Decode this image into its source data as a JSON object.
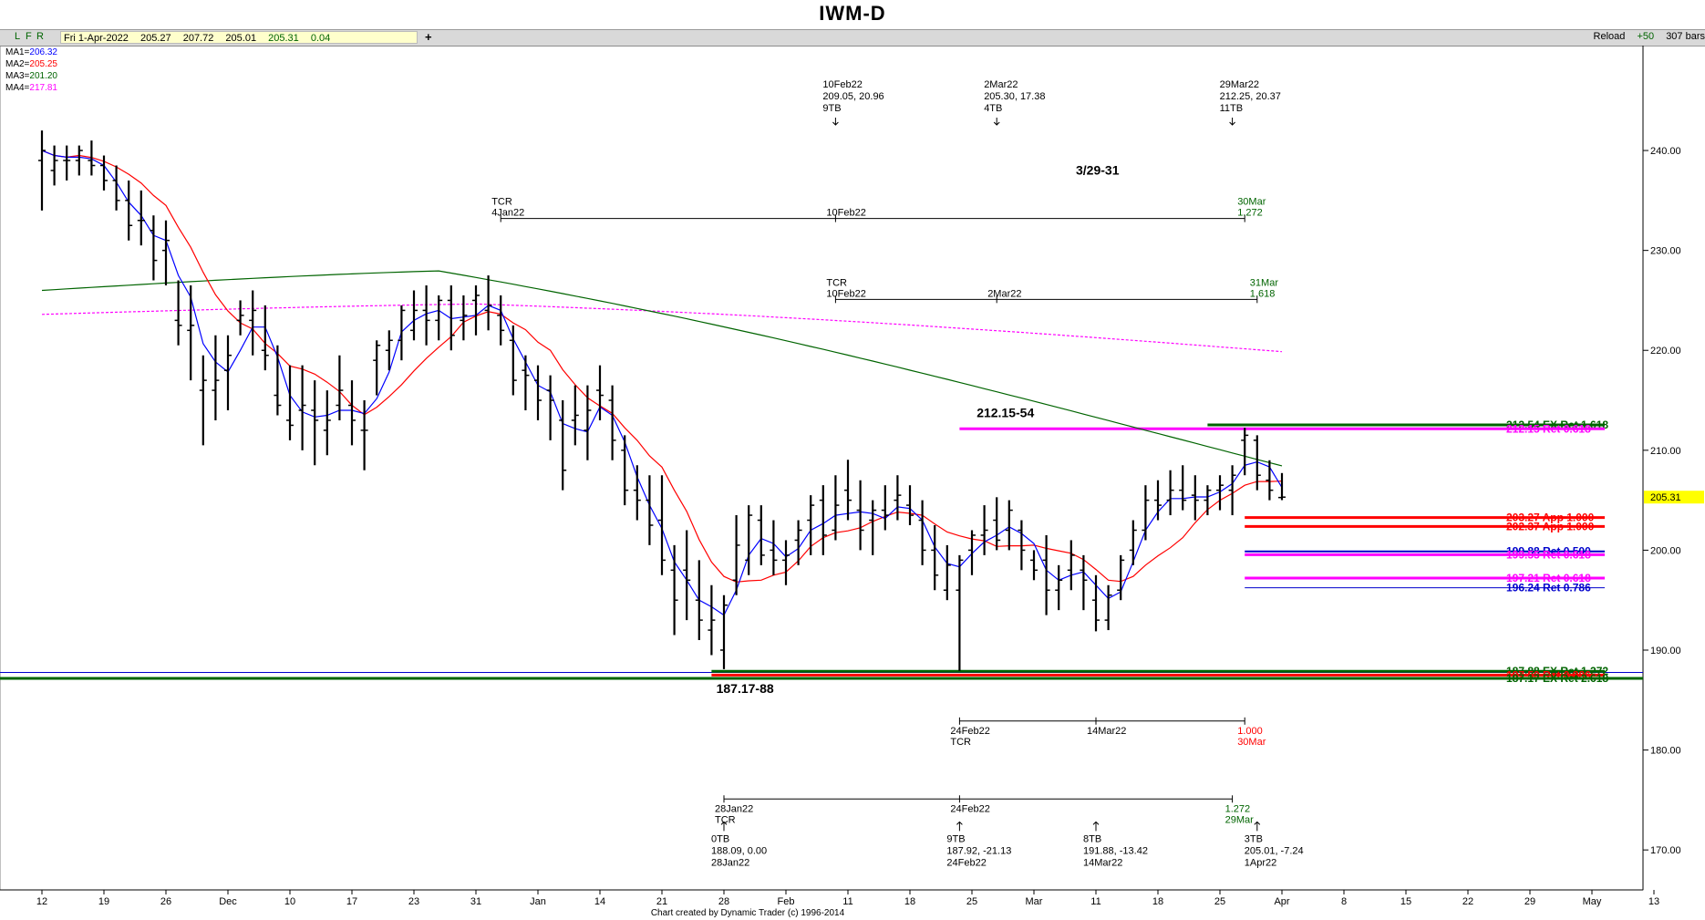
{
  "title": "IWM-D",
  "toolbar": {
    "buttons": [
      "L",
      "F",
      "R"
    ],
    "date": "Fri 1-Apr-2022",
    "open": "205.27",
    "high": "207.72",
    "low": "205.01",
    "close": "205.31",
    "change": "0.04",
    "plus": "+",
    "reload": "Reload",
    "plus50": "+50",
    "bars": "307 bars"
  },
  "footer": "Chart created by Dynamic Trader  (c)  1996-2014",
  "colors": {
    "ma1": "#0000ff",
    "ma2": "#ff0000",
    "ma3": "#006400",
    "ma4": "#ff00ff",
    "green": "#006400",
    "red": "#ff0000",
    "blue": "#0000cc",
    "magenta": "#ff00ff",
    "lastPrice": "#ffff00"
  },
  "chart_data": {
    "type": "ohlc",
    "symbol": "IWM",
    "timeframe": "Daily",
    "ylim": [
      166.0,
      250.5
    ],
    "yticks": [
      170,
      180,
      190,
      200,
      210,
      220,
      230,
      240
    ],
    "ytick_labels": [
      "170.00",
      "180.00",
      "190.00",
      "200.00",
      "210.00",
      "220.00",
      "230.00",
      "240.00"
    ],
    "x_labels": [
      {
        "i": 0,
        "label": "12"
      },
      {
        "i": 5,
        "label": "19"
      },
      {
        "i": 10,
        "label": "26"
      },
      {
        "i": 15,
        "label": "Dec"
      },
      {
        "i": 20,
        "label": "10"
      },
      {
        "i": 25,
        "label": "17"
      },
      {
        "i": 30,
        "label": "23"
      },
      {
        "i": 35,
        "label": "31"
      },
      {
        "i": 40,
        "label": "Jan"
      },
      {
        "i": 45,
        "label": "14"
      },
      {
        "i": 50,
        "label": "21"
      },
      {
        "i": 55,
        "label": "28"
      },
      {
        "i": 60,
        "label": "Feb"
      },
      {
        "i": 65,
        "label": "11"
      },
      {
        "i": 70,
        "label": "18"
      },
      {
        "i": 75,
        "label": "25"
      },
      {
        "i": 80,
        "label": "Mar"
      },
      {
        "i": 85,
        "label": "11"
      },
      {
        "i": 90,
        "label": "18"
      },
      {
        "i": 95,
        "label": "25"
      },
      {
        "i": 100,
        "label": "Apr"
      },
      {
        "i": 105,
        "label": "8"
      },
      {
        "i": 110,
        "label": "15"
      },
      {
        "i": 115,
        "label": "22"
      },
      {
        "i": 120,
        "label": "29"
      },
      {
        "i": 125,
        "label": "May"
      },
      {
        "i": 130,
        "label": "13"
      }
    ],
    "moving_averages": [
      {
        "name": "MA1",
        "value": "206.32",
        "color": "#0000ff"
      },
      {
        "name": "MA2",
        "value": "205.25",
        "color": "#ff0000"
      },
      {
        "name": "MA3",
        "value": "201.20",
        "color": "#006400"
      },
      {
        "name": "MA4",
        "value": "217.81",
        "color": "#ff00ff"
      }
    ],
    "bars": [
      {
        "i": 0,
        "o": 239,
        "h": 242.0,
        "l": 234.0,
        "c": 240
      },
      {
        "i": 1,
        "o": 238,
        "h": 240.5,
        "l": 236.5,
        "c": 239
      },
      {
        "i": 2,
        "o": 239,
        "h": 240.5,
        "l": 237.0,
        "c": 239
      },
      {
        "i": 3,
        "o": 239,
        "h": 240.5,
        "l": 237.5,
        "c": 240
      },
      {
        "i": 4,
        "o": 239,
        "h": 241.0,
        "l": 237.5,
        "c": 238.5
      },
      {
        "i": 5,
        "o": 238.5,
        "h": 239.5,
        "l": 236.0,
        "c": 237
      },
      {
        "i": 6,
        "o": 237,
        "h": 238.5,
        "l": 234.0,
        "c": 235
      },
      {
        "i": 7,
        "o": 235,
        "h": 237.0,
        "l": 231.0,
        "c": 232.5
      },
      {
        "i": 8,
        "o": 233,
        "h": 236.0,
        "l": 230.5,
        "c": 233
      },
      {
        "i": 9,
        "o": 232,
        "h": 233.5,
        "l": 227.0,
        "c": 229
      },
      {
        "i": 10,
        "o": 230,
        "h": 233.0,
        "l": 226.5,
        "c": 231
      },
      {
        "i": 11,
        "o": 223,
        "h": 227.0,
        "l": 220.5,
        "c": 222.5
      },
      {
        "i": 12,
        "o": 222,
        "h": 226.5,
        "l": 217.0,
        "c": 222.5
      },
      {
        "i": 13,
        "o": 216,
        "h": 219.5,
        "l": 210.5,
        "c": 217
      },
      {
        "i": 14,
        "o": 216,
        "h": 221.5,
        "l": 213.0,
        "c": 217
      },
      {
        "i": 15,
        "o": 218,
        "h": 221.5,
        "l": 214.0,
        "c": 219.5
      },
      {
        "i": 16,
        "o": 223,
        "h": 225.0,
        "l": 221.5,
        "c": 223.5
      },
      {
        "i": 17,
        "o": 223,
        "h": 226.0,
        "l": 219.5,
        "c": 224
      },
      {
        "i": 18,
        "o": 220,
        "h": 224.5,
        "l": 218.0,
        "c": 219.5
      },
      {
        "i": 19,
        "o": 215.5,
        "h": 220.5,
        "l": 213.5,
        "c": 214.5
      },
      {
        "i": 20,
        "o": 213,
        "h": 218.5,
        "l": 211.0,
        "c": 212.5
      },
      {
        "i": 21,
        "o": 214,
        "h": 218.5,
        "l": 210.0,
        "c": 214.5
      },
      {
        "i": 22,
        "o": 214,
        "h": 217.0,
        "l": 208.5,
        "c": 213
      },
      {
        "i": 23,
        "o": 212,
        "h": 216.0,
        "l": 209.5,
        "c": 213
      },
      {
        "i": 24,
        "o": 214.5,
        "h": 219.5,
        "l": 213.0,
        "c": 216
      },
      {
        "i": 25,
        "o": 214.5,
        "h": 217.0,
        "l": 210.5,
        "c": 213
      },
      {
        "i": 26,
        "o": 212,
        "h": 215.0,
        "l": 208.0,
        "c": 212
      },
      {
        "i": 27,
        "o": 219,
        "h": 221.0,
        "l": 215.5,
        "c": 220.5
      },
      {
        "i": 28,
        "o": 220,
        "h": 222.0,
        "l": 218.0,
        "c": 221
      },
      {
        "i": 29,
        "o": 221,
        "h": 224.5,
        "l": 219.0,
        "c": 224
      },
      {
        "i": 30,
        "o": 222,
        "h": 226.0,
        "l": 221.0,
        "c": 224
      },
      {
        "i": 31,
        "o": 224,
        "h": 226.5,
        "l": 220.5,
        "c": 223
      },
      {
        "i": 32,
        "o": 223,
        "h": 225.5,
        "l": 221.0,
        "c": 225
      },
      {
        "i": 33,
        "o": 225,
        "h": 226.5,
        "l": 220.0,
        "c": 221.5
      },
      {
        "i": 34,
        "o": 223,
        "h": 225.5,
        "l": 221.0,
        "c": 223.5
      },
      {
        "i": 35,
        "o": 225,
        "h": 226.5,
        "l": 221.5,
        "c": 225.5
      },
      {
        "i": 36,
        "o": 224,
        "h": 227.5,
        "l": 222.0,
        "c": 224.5
      },
      {
        "i": 37,
        "o": 223.5,
        "h": 225.5,
        "l": 220.5,
        "c": 222
      },
      {
        "i": 38,
        "o": 221,
        "h": 222.5,
        "l": 215.5,
        "c": 217
      },
      {
        "i": 39,
        "o": 218,
        "h": 219.5,
        "l": 214.0,
        "c": 217.5
      },
      {
        "i": 40,
        "o": 217,
        "h": 218.5,
        "l": 213.0,
        "c": 215
      },
      {
        "i": 41,
        "o": 216,
        "h": 217.5,
        "l": 211.0,
        "c": 215
      },
      {
        "i": 42,
        "o": 213,
        "h": 215.0,
        "l": 206.0,
        "c": 208
      },
      {
        "i": 43,
        "o": 213,
        "h": 216.5,
        "l": 210.5,
        "c": 213.5
      },
      {
        "i": 44,
        "o": 212,
        "h": 216.5,
        "l": 209.0,
        "c": 214
      },
      {
        "i": 45,
        "o": 216,
        "h": 218.5,
        "l": 213.0,
        "c": 215.5
      },
      {
        "i": 46,
        "o": 215,
        "h": 216.5,
        "l": 209.0,
        "c": 211
      },
      {
        "i": 47,
        "o": 210,
        "h": 211.5,
        "l": 204.5,
        "c": 206
      },
      {
        "i": 48,
        "o": 206,
        "h": 208.5,
        "l": 203.0,
        "c": 205
      },
      {
        "i": 49,
        "o": 205,
        "h": 207.5,
        "l": 200.5,
        "c": 202.5
      },
      {
        "i": 50,
        "o": 203,
        "h": 207.5,
        "l": 197.5,
        "c": 199
      },
      {
        "i": 51,
        "o": 198,
        "h": 200.5,
        "l": 191.5,
        "c": 195
      },
      {
        "i": 52,
        "o": 198,
        "h": 202.0,
        "l": 193.0,
        "c": 197
      },
      {
        "i": 53,
        "o": 195,
        "h": 199.0,
        "l": 191.0,
        "c": 193
      },
      {
        "i": 54,
        "o": 192,
        "h": 196.5,
        "l": 189.5,
        "c": 193
      },
      {
        "i": 55,
        "o": 190,
        "h": 195.5,
        "l": 188.09,
        "c": 194.5
      },
      {
        "i": 56,
        "o": 197,
        "h": 203.5,
        "l": 195.5,
        "c": 200.5
      },
      {
        "i": 57,
        "o": 199,
        "h": 204.5,
        "l": 197.5,
        "c": 203.5
      },
      {
        "i": 58,
        "o": 203,
        "h": 204.5,
        "l": 198.5,
        "c": 199.5
      },
      {
        "i": 59,
        "o": 200,
        "h": 203.0,
        "l": 197.5,
        "c": 199
      },
      {
        "i": 60,
        "o": 199,
        "h": 201.0,
        "l": 196.5,
        "c": 199.5
      },
      {
        "i": 61,
        "o": 201,
        "h": 203.0,
        "l": 198.5,
        "c": 202
      },
      {
        "i": 62,
        "o": 203,
        "h": 205.5,
        "l": 199.5,
        "c": 204.5
      },
      {
        "i": 63,
        "o": 205,
        "h": 206.5,
        "l": 199.5,
        "c": 201.5
      },
      {
        "i": 64,
        "o": 202,
        "h": 207.5,
        "l": 201.0,
        "c": 204.5
      },
      {
        "i": 65,
        "o": 206,
        "h": 209.05,
        "l": 203.0,
        "c": 205
      },
      {
        "i": 66,
        "o": 204,
        "h": 207.0,
        "l": 200.0,
        "c": 202
      },
      {
        "i": 67,
        "o": 203,
        "h": 205.0,
        "l": 199.5,
        "c": 204
      },
      {
        "i": 68,
        "o": 204,
        "h": 206.5,
        "l": 202.0,
        "c": 203.5
      },
      {
        "i": 69,
        "o": 205,
        "h": 207.5,
        "l": 203.0,
        "c": 205.5
      },
      {
        "i": 70,
        "o": 204.5,
        "h": 206.5,
        "l": 202.5,
        "c": 203.5
      },
      {
        "i": 71,
        "o": 203,
        "h": 205.0,
        "l": 198.5,
        "c": 200
      },
      {
        "i": 72,
        "o": 200,
        "h": 202.5,
        "l": 196.0,
        "c": 197.5
      },
      {
        "i": 73,
        "o": 196,
        "h": 200.5,
        "l": 195.0,
        "c": 198.5
      },
      {
        "i": 74,
        "o": 196,
        "h": 199.5,
        "l": 187.92,
        "c": 199
      },
      {
        "i": 75,
        "o": 200,
        "h": 202.0,
        "l": 197.5,
        "c": 201.5
      },
      {
        "i": 76,
        "o": 201.5,
        "h": 204.5,
        "l": 199.5,
        "c": 202
      },
      {
        "i": 77,
        "o": 203,
        "h": 205.3,
        "l": 200.0,
        "c": 201
      },
      {
        "i": 78,
        "o": 202,
        "h": 205.0,
        "l": 200.0,
        "c": 204
      },
      {
        "i": 79,
        "o": 202,
        "h": 203.0,
        "l": 198.0,
        "c": 200
      },
      {
        "i": 80,
        "o": 199,
        "h": 200.0,
        "l": 197.0,
        "c": 198
      },
      {
        "i": 81,
        "o": 199,
        "h": 201.5,
        "l": 193.5,
        "c": 196
      },
      {
        "i": 82,
        "o": 196,
        "h": 198.5,
        "l": 194.0,
        "c": 197
      },
      {
        "i": 83,
        "o": 198,
        "h": 201.0,
        "l": 196.0,
        "c": 199.5
      },
      {
        "i": 84,
        "o": 198,
        "h": 199.5,
        "l": 194.0,
        "c": 197
      },
      {
        "i": 85,
        "o": 195,
        "h": 197.5,
        "l": 191.88,
        "c": 193
      },
      {
        "i": 86,
        "o": 193,
        "h": 196.5,
        "l": 192.0,
        "c": 195.5
      },
      {
        "i": 87,
        "o": 196,
        "h": 199.5,
        "l": 195.0,
        "c": 199
      },
      {
        "i": 88,
        "o": 200,
        "h": 203.0,
        "l": 198.5,
        "c": 202
      },
      {
        "i": 89,
        "o": 202,
        "h": 206.5,
        "l": 201.0,
        "c": 205
      },
      {
        "i": 90,
        "o": 205,
        "h": 207.0,
        "l": 203.0,
        "c": 204.5
      },
      {
        "i": 91,
        "o": 205,
        "h": 208.0,
        "l": 203.5,
        "c": 206
      },
      {
        "i": 92,
        "o": 206,
        "h": 208.5,
        "l": 204.0,
        "c": 205
      },
      {
        "i": 93,
        "o": 205.5,
        "h": 207.5,
        "l": 203.0,
        "c": 205
      },
      {
        "i": 94,
        "o": 205,
        "h": 206.5,
        "l": 203.5,
        "c": 206
      },
      {
        "i": 95,
        "o": 206,
        "h": 207.5,
        "l": 204.0,
        "c": 206.5
      },
      {
        "i": 96,
        "o": 206,
        "h": 208.5,
        "l": 203.5,
        "c": 207.5
      },
      {
        "i": 97,
        "o": 211,
        "h": 212.25,
        "l": 207.5,
        "c": 211.5
      },
      {
        "i": 98,
        "o": 211,
        "h": 211.5,
        "l": 206.0,
        "c": 207.5
      },
      {
        "i": 99,
        "o": 207,
        "h": 209.0,
        "l": 205.0,
        "c": 206
      },
      {
        "i": 100,
        "o": 205.27,
        "h": 207.72,
        "l": 205.01,
        "c": 205.31
      }
    ],
    "last_price": {
      "value": 205.31,
      "label": "205.31"
    },
    "levels": [
      {
        "price": 212.54,
        "x0": 94,
        "label": "212.54 EX Ret 1.618",
        "color": "#006400",
        "w": 3
      },
      {
        "price": 212.15,
        "x0": 74,
        "label": "212.15 Ret 0.618",
        "color": "#ff00ff",
        "w": 3
      },
      {
        "price": 203.27,
        "x0": 97,
        "label": "203.27 App 1.000",
        "color": "#ff0000",
        "w": 3
      },
      {
        "price": 202.37,
        "x0": 97,
        "label": "202.37 App 1.000",
        "color": "#ff0000",
        "w": 3
      },
      {
        "price": 199.88,
        "x0": 97,
        "label": "199.88 Ret 0.500",
        "color": "#0000cc",
        "w": 2
      },
      {
        "price": 199.55,
        "x0": 97,
        "label": "199.55 Ret 0.618",
        "color": "#ff00ff",
        "w": 3
      },
      {
        "price": 197.21,
        "x0": 97,
        "label": "197.21 Ret 0.618",
        "color": "#ff00ff",
        "w": 3
      },
      {
        "price": 196.24,
        "x0": 97,
        "label": "196.24 Ret 0.786",
        "color": "#0000cc",
        "w": 1
      },
      {
        "price": 187.88,
        "x0": 54,
        "label": "187.88 EX Ret 1.272",
        "color": "#006400",
        "w": 3
      },
      {
        "price": 187.5,
        "x0": 54,
        "label": "187.50 Ret 0.886",
        "color": "#ff0000",
        "w": 3
      },
      {
        "price": 187.17,
        "x0": 92,
        "label": "187.17 EX Ret 2.618",
        "color": "#006400",
        "w": 3
      }
    ],
    "full_lines": [
      {
        "price": 187.76,
        "color": "#0000cc",
        "w": 1
      },
      {
        "price": 187.17,
        "color": "#006400",
        "w": 3
      }
    ],
    "annotations": [
      {
        "x": 64,
        "price": 246.3,
        "lines": [
          "10Feb22",
          "209.05, 20.96",
          "9TB"
        ],
        "arrow": "down"
      },
      {
        "x": 77,
        "price": 246.3,
        "lines": [
          "2Mar22",
          "205.30, 17.38",
          "4TB"
        ],
        "arrow": "down"
      },
      {
        "x": 96,
        "price": 246.3,
        "lines": [
          "29Mar22",
          "212.25, 20.37",
          "11TB"
        ],
        "arrow": "down"
      },
      {
        "x": 55,
        "price": 170.8,
        "lines": [
          "0TB",
          "188.09, 0.00",
          "28Jan22"
        ],
        "arrow": "up"
      },
      {
        "x": 74,
        "price": 170.8,
        "lines": [
          "9TB",
          "187.92, -21.13",
          "24Feb22"
        ],
        "arrow": "up"
      },
      {
        "x": 85,
        "price": 170.8,
        "lines": [
          "8TB",
          "191.88, -13.42",
          "14Mar22"
        ],
        "arrow": "up"
      },
      {
        "x": 98,
        "price": 170.8,
        "lines": [
          "3TB",
          "205.01, -7.24",
          "1Apr22"
        ],
        "arrow": "up"
      }
    ],
    "time_projections": [
      {
        "price": 233.2,
        "x0": 37,
        "x1": 97,
        "ticks": [
          37,
          64,
          97
        ],
        "left_text": [
          "TCR",
          "4Jan22"
        ],
        "mid": [
          {
            "x": 64,
            "text": "10Feb22"
          }
        ],
        "right_text": [
          "30Mar",
          "1.272"
        ],
        "color": "#006400",
        "above": true
      },
      {
        "price": 225.1,
        "x0": 64,
        "x1": 98,
        "ticks": [
          64,
          77,
          98
        ],
        "left_text": [
          "TCR",
          "10Feb22"
        ],
        "mid": [
          {
            "x": 77,
            "text": "2Mar22"
          }
        ],
        "right_text": [
          "31Mar",
          "1.618"
        ],
        "color": "#006400",
        "above": true
      },
      {
        "price": 182.9,
        "x0": 74,
        "x1": 97,
        "ticks": [
          74,
          85,
          97
        ],
        "left_text": [
          "24Feb22",
          "TCR"
        ],
        "mid": [
          {
            "x": 85,
            "text": "14Mar22"
          }
        ],
        "right_text": [
          "1.000",
          "30Mar"
        ],
        "color": "#ff0000",
        "above": false
      },
      {
        "price": 175.1,
        "x0": 55,
        "x1": 96,
        "ticks": [
          55,
          74,
          96
        ],
        "left_text": [
          "28Jan22",
          "TCR"
        ],
        "mid": [
          {
            "x": 74,
            "text": "24Feb22"
          }
        ],
        "right_text": [
          "1.272",
          "29Mar"
        ],
        "color": "#006400",
        "above": false
      }
    ],
    "labels": [
      {
        "text": "3/29-31",
        "x": 85,
        "price": 237.6
      },
      {
        "text": "212.15-54",
        "x": 77,
        "price": 213.3
      },
      {
        "text": "187.17-88",
        "x": 56,
        "price": 185.7
      }
    ]
  }
}
